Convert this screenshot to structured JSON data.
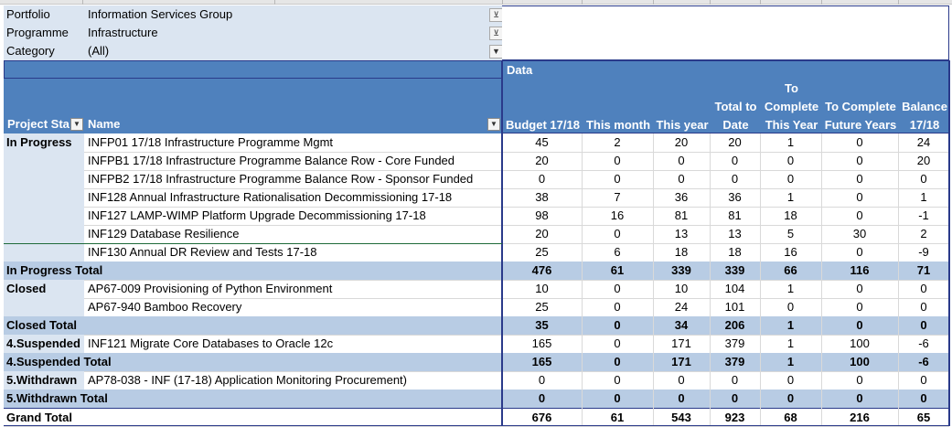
{
  "filters": [
    {
      "label": "Portfolio",
      "value": "Information Services Group",
      "icon": "filter-icon"
    },
    {
      "label": "Programme",
      "value": "Infrastructure",
      "icon": "filter-icon"
    },
    {
      "label": "Category",
      "value": "(All)",
      "icon": "dropdown-icon"
    }
  ],
  "header": {
    "data_label": "Data",
    "project_status_label": "Project Sta",
    "name_label": "Name",
    "columns": [
      {
        "l1": "",
        "l2": "",
        "l3": "Budget 17/18"
      },
      {
        "l1": "",
        "l2": "",
        "l3": "This month"
      },
      {
        "l1": "",
        "l2": "",
        "l3": "This year"
      },
      {
        "l1": "",
        "l2": "Total to",
        "l3": "Date"
      },
      {
        "l1": "To",
        "l2": "Complete",
        "l3": "This Year"
      },
      {
        "l1": "",
        "l2": "To Complete",
        "l3": "Future Years"
      },
      {
        "l1": "",
        "l2": "Balance",
        "l3": "17/18"
      }
    ]
  },
  "rows": [
    {
      "status": "In Progress",
      "name": "INFP01 17/18 Infrastructure Programme Mgmt",
      "values": [
        "45",
        "2",
        "20",
        "20",
        "1",
        "0",
        "24"
      ],
      "type": "data"
    },
    {
      "status": "",
      "name": "INFPB1 17/18 Infrastructure Programme Balance Row - Core Funded",
      "values": [
        "20",
        "0",
        "0",
        "0",
        "0",
        "0",
        "20"
      ],
      "type": "data"
    },
    {
      "status": "",
      "name": "INFPB2 17/18 Infrastructure Programme Balance Row - Sponsor Funded",
      "values": [
        "0",
        "0",
        "0",
        "0",
        "0",
        "0",
        "0"
      ],
      "type": "data"
    },
    {
      "status": "",
      "name": "INF128 Annual Infrastructure Rationalisation Decommissioning 17-18",
      "values": [
        "38",
        "7",
        "36",
        "36",
        "1",
        "0",
        "1"
      ],
      "type": "data"
    },
    {
      "status": "",
      "name": "INF127 LAMP-WIMP Platform Upgrade Decommissioning 17-18",
      "values": [
        "98",
        "16",
        "81",
        "81",
        "18",
        "0",
        "-1"
      ],
      "type": "data"
    },
    {
      "status": "",
      "name": "INF129 Database Resilience",
      "values": [
        "20",
        "0",
        "13",
        "13",
        "5",
        "30",
        "2"
      ],
      "type": "data"
    },
    {
      "status": "",
      "name": "INF130 Annual DR Review and Tests 17-18",
      "values": [
        "25",
        "6",
        "18",
        "18",
        "16",
        "0",
        "-9"
      ],
      "type": "data"
    },
    {
      "status": "In Progress Total",
      "name": "",
      "values": [
        "476",
        "61",
        "339",
        "339",
        "66",
        "116",
        "71"
      ],
      "type": "total"
    },
    {
      "status": "Closed",
      "name": "AP67-009 Provisioning of Python Environment",
      "values": [
        "10",
        "0",
        "10",
        "104",
        "1",
        "0",
        "0"
      ],
      "type": "data"
    },
    {
      "status": "",
      "name": "AP67-940 Bamboo Recovery",
      "values": [
        "25",
        "0",
        "24",
        "101",
        "0",
        "0",
        "0"
      ],
      "type": "data"
    },
    {
      "status": "Closed Total",
      "name": "",
      "values": [
        "35",
        "0",
        "34",
        "206",
        "1",
        "0",
        "0"
      ],
      "type": "total"
    },
    {
      "status": "4.Suspended",
      "name": "INF121 Migrate Core Databases to Oracle 12c",
      "values": [
        "165",
        "0",
        "171",
        "379",
        "1",
        "100",
        "-6"
      ],
      "type": "data"
    },
    {
      "status": "4.Suspended Total",
      "name": "",
      "values": [
        "165",
        "0",
        "171",
        "379",
        "1",
        "100",
        "-6"
      ],
      "type": "total"
    },
    {
      "status": "5.Withdrawn",
      "name": "AP78-038 - INF (17-18) Application Monitoring Procurement)",
      "values": [
        "0",
        "0",
        "0",
        "0",
        "0",
        "0",
        "0"
      ],
      "type": "data"
    },
    {
      "status": "5.Withdrawn Total",
      "name": "",
      "values": [
        "0",
        "0",
        "0",
        "0",
        "0",
        "0",
        "0"
      ],
      "type": "total"
    },
    {
      "status": "Grand Total",
      "name": "",
      "values": [
        "676",
        "61",
        "543",
        "923",
        "68",
        "216",
        "65"
      ],
      "type": "grand"
    }
  ],
  "colors": {
    "header_blue": "#4f81bd",
    "light_blue": "#dbe5f1",
    "total_blue": "#b8cce4",
    "border_navy": "#2a3a8a"
  }
}
